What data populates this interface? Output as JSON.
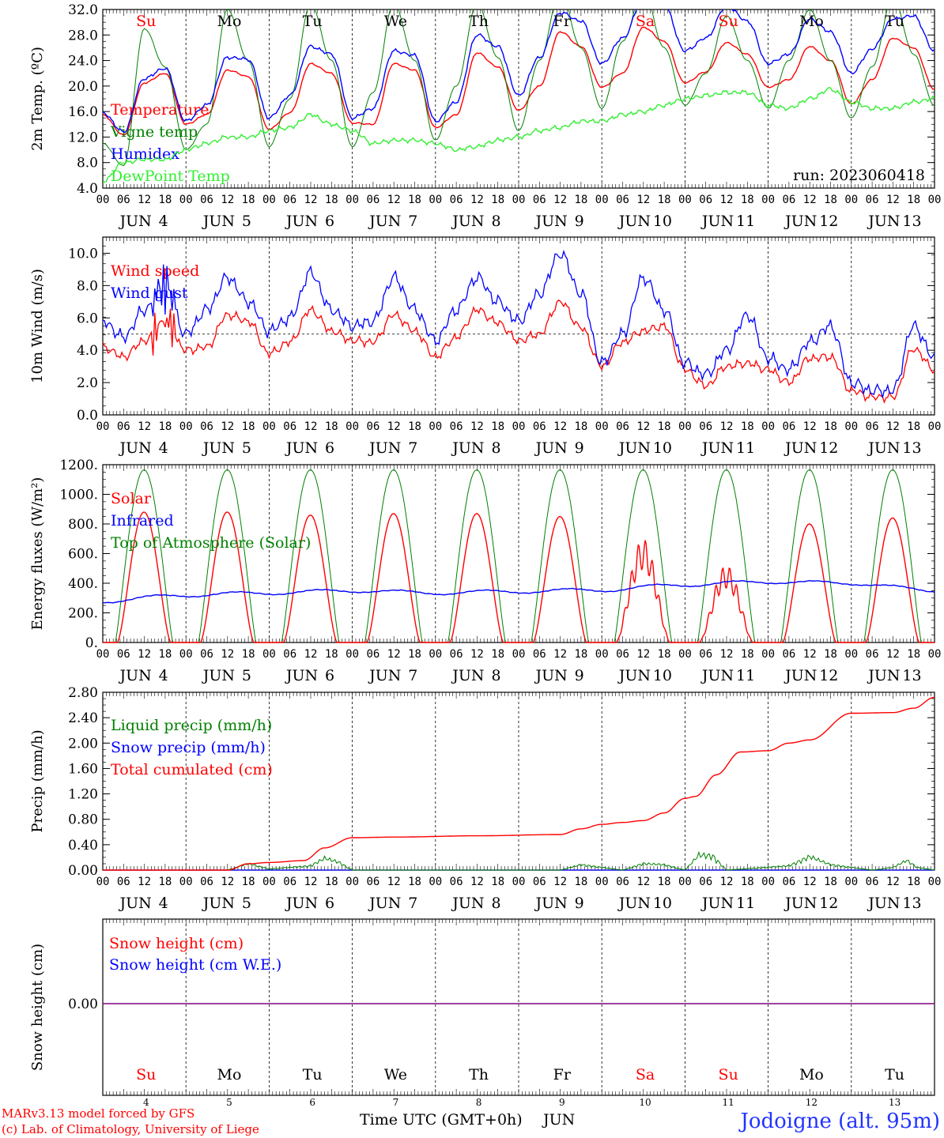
{
  "run_label": "run: 2023060418",
  "footer": {
    "model": "MARv3.13 model forced by GFS",
    "copyright": "(c) Lab. of Climatology, University of Liege",
    "station": "Jodoigne (alt. 95m)",
    "time_axis_label": "Time UTC (GMT+0h)",
    "month": "JUN"
  },
  "colors": {
    "red": "#ff0000",
    "blue": "#0000ff",
    "dark_green": "#008000",
    "light_green": "#33ee33",
    "purple": "#800080",
    "black": "#000000"
  },
  "days": [
    {
      "dow": "Su",
      "date": "4",
      "weekend": true
    },
    {
      "dow": "Mo",
      "date": "5",
      "weekend": false
    },
    {
      "dow": "Tu",
      "date": "6",
      "weekend": false
    },
    {
      "dow": "We",
      "date": "7",
      "weekend": false
    },
    {
      "dow": "Th",
      "date": "8",
      "weekend": false
    },
    {
      "dow": "Fr",
      "date": "9",
      "weekend": false
    },
    {
      "dow": "Sa",
      "date": "10",
      "weekend": true
    },
    {
      "dow": "Su",
      "date": "11",
      "weekend": true
    },
    {
      "dow": "Mo",
      "date": "12",
      "weekend": false
    },
    {
      "dow": "Tu",
      "date": "13",
      "weekend": false
    }
  ],
  "hour_ticks": [
    "00",
    "06",
    "12",
    "18"
  ],
  "hour_end": "00",
  "date_prefix": "JUN",
  "chart_data": [
    {
      "id": "temp",
      "type": "line",
      "ylabel": "2m Temp. (ºC)",
      "ylim": [
        4,
        32
      ],
      "yticks": [
        "4.0",
        "8.0",
        "12.0",
        "16.0",
        "20.0",
        "24.0",
        "28.0",
        "32.0"
      ],
      "x_unit": "hours since JUN 4 00 UTC",
      "x": [
        0,
        6,
        12,
        18,
        24,
        30,
        36,
        42,
        48,
        54,
        60,
        66,
        72,
        78,
        84,
        90,
        96,
        102,
        108,
        114,
        120,
        126,
        132,
        138,
        144,
        150,
        156,
        162,
        168,
        174,
        180,
        186,
        192,
        198,
        204,
        210,
        216,
        222,
        228,
        234,
        240
      ],
      "series": [
        {
          "name": "Temperature",
          "color": "#ff0000",
          "values": [
            15.5,
            12.3,
            20.5,
            22.0,
            14.0,
            15.5,
            22.5,
            21.5,
            13.2,
            15.8,
            23.5,
            22.0,
            14.2,
            14.0,
            23.5,
            22.5,
            13.5,
            15.5,
            25.2,
            23.0,
            16.2,
            20.0,
            28.5,
            26.2,
            19.8,
            22.0,
            29.2,
            27.0,
            20.5,
            22.2,
            26.8,
            25.0,
            19.8,
            21.0,
            26.2,
            24.0,
            17.2,
            21.0,
            27.5,
            26.0,
            19.5
          ]
        },
        {
          "name": "Vigne temp",
          "color": "#008000",
          "values": [
            11.0,
            7.5,
            29.0,
            23.0,
            10.0,
            14.0,
            32.0,
            24.0,
            10.5,
            18.0,
            33.0,
            24.0,
            10.5,
            19.0,
            33.0,
            24.0,
            11.5,
            20.0,
            33.0,
            24.5,
            13.0,
            24.0,
            35.0,
            26.0,
            16.5,
            27.0,
            35.0,
            26.0,
            17.0,
            22.0,
            31.0,
            24.0,
            16.5,
            24.0,
            32.0,
            24.0,
            15.0,
            23.0,
            34.0,
            25.0,
            17.0
          ]
        },
        {
          "name": "Humidex",
          "color": "#0000ff",
          "values": [
            15.8,
            12.8,
            21.2,
            22.8,
            14.5,
            17.0,
            24.5,
            24.2,
            15.0,
            18.5,
            26.2,
            25.0,
            15.0,
            16.5,
            25.5,
            24.8,
            14.5,
            17.5,
            28.0,
            26.2,
            18.5,
            24.5,
            31.5,
            30.2,
            23.5,
            27.5,
            33.5,
            32.5,
            25.5,
            27.5,
            32.5,
            30.2,
            23.5,
            25.0,
            30.5,
            28.5,
            22.0,
            25.8,
            30.5,
            31.0,
            25.5
          ]
        },
        {
          "name": "DewPoint Temp",
          "color": "#33ee33",
          "values": [
            5.0,
            8.0,
            8.5,
            8.5,
            10.0,
            11.0,
            12.0,
            12.0,
            13.0,
            13.5,
            15.5,
            14.0,
            13.0,
            11.0,
            11.5,
            11.5,
            11.0,
            10.0,
            10.5,
            11.5,
            12.0,
            13.0,
            13.5,
            14.5,
            14.5,
            15.5,
            16.0,
            17.0,
            18.0,
            18.5,
            19.0,
            19.0,
            17.0,
            16.5,
            18.0,
            19.5,
            17.5,
            16.5,
            16.5,
            17.5,
            18.0
          ]
        }
      ]
    },
    {
      "id": "wind",
      "type": "line",
      "ylabel": "10m Wind (m/s)",
      "ylim": [
        0,
        11
      ],
      "yticks": [
        "0.0",
        "2.0",
        "4.0",
        "6.0",
        "8.0",
        "10.0"
      ],
      "ref_line": 5,
      "x_unit": "hours since JUN 4 00 UTC",
      "x": [
        0,
        6,
        12,
        18,
        24,
        30,
        36,
        42,
        48,
        54,
        60,
        66,
        72,
        78,
        84,
        90,
        96,
        102,
        108,
        114,
        120,
        126,
        132,
        138,
        144,
        150,
        156,
        162,
        168,
        174,
        180,
        186,
        192,
        198,
        204,
        210,
        216,
        222,
        228,
        234,
        240
      ],
      "series": [
        {
          "name": "Wind speed",
          "color": "#ff0000",
          "values": [
            4.2,
            3.6,
            4.6,
            5.8,
            4.0,
            4.2,
            6.2,
            5.8,
            3.8,
            4.5,
            6.5,
            5.2,
            4.6,
            4.5,
            6.2,
            5.2,
            3.6,
            4.8,
            6.5,
            5.7,
            4.6,
            5.0,
            7.0,
            5.4,
            3.0,
            4.5,
            5.2,
            5.5,
            2.8,
            1.8,
            3.0,
            3.2,
            2.8,
            2.0,
            3.5,
            3.6,
            1.5,
            1.1,
            1.1,
            4.1,
            2.8
          ]
        },
        {
          "name": "Wind gust",
          "color": "#0000ff",
          "values": [
            5.8,
            4.8,
            6.5,
            8.0,
            5.0,
            6.5,
            8.5,
            7.0,
            5.2,
            6.0,
            8.8,
            6.5,
            5.5,
            5.8,
            8.5,
            6.5,
            4.6,
            6.5,
            8.5,
            7.0,
            5.8,
            7.5,
            10.0,
            7.5,
            3.2,
            5.0,
            8.5,
            6.5,
            3.2,
            2.5,
            4.0,
            6.2,
            3.5,
            2.8,
            4.5,
            5.5,
            2.0,
            1.5,
            1.5,
            5.5,
            3.5
          ]
        }
      ]
    },
    {
      "id": "energy",
      "type": "line",
      "ylabel": "Energy fluxes (W/m²)",
      "ylim": [
        0,
        1200
      ],
      "yticks": [
        "0.",
        "200.",
        "400.",
        "600.",
        "800.",
        "1000.",
        "1200."
      ],
      "series": [
        {
          "name": "Solar",
          "color": "#ff0000",
          "daily_peak": [
            880,
            880,
            860,
            870,
            870,
            850,
            700,
            520,
            800,
            840
          ]
        },
        {
          "name": "Infrared",
          "color": "#0000ff",
          "x": [
            0,
            24,
            48,
            72,
            96,
            120,
            144,
            168,
            192,
            216,
            240
          ],
          "values": [
            280,
            320,
            335,
            350,
            335,
            345,
            355,
            390,
            410,
            400,
            350
          ]
        },
        {
          "name": "Top of Atmosphere (Solar)",
          "color": "#008000",
          "daily_peak": [
            1165,
            1165,
            1165,
            1165,
            1165,
            1165,
            1165,
            1165,
            1165,
            1165
          ]
        }
      ]
    },
    {
      "id": "precip",
      "type": "line",
      "ylabel": "Precip (mm/h)",
      "ylim": [
        0,
        2.8
      ],
      "yticks": [
        "0.00",
        "0.40",
        "0.80",
        "1.20",
        "1.60",
        "2.00",
        "2.40",
        "2.80"
      ],
      "series": [
        {
          "name": "Liquid precip (mm/h)",
          "color": "#008000",
          "x": [
            0,
            36,
            42,
            48,
            60,
            64,
            68,
            72,
            132,
            138,
            150,
            156,
            162,
            168,
            172,
            176,
            180,
            198,
            204,
            210,
            222,
            228,
            232,
            235,
            240
          ],
          "values": [
            0,
            0,
            0.12,
            0.02,
            0.08,
            0.22,
            0.15,
            0,
            0,
            0.1,
            0,
            0.12,
            0.1,
            0,
            0.28,
            0.26,
            0,
            0.08,
            0.25,
            0.1,
            0,
            0.05,
            0.18,
            0.05,
            0
          ]
        },
        {
          "name": "Snow precip (mm/h)",
          "color": "#0000ff",
          "x": [
            0,
            240
          ],
          "values": [
            0,
            0
          ]
        },
        {
          "name": "Total cumulated (cm)",
          "color": "#ff0000",
          "x": [
            0,
            36,
            42,
            48,
            58,
            64,
            72,
            84,
            108,
            132,
            138,
            144,
            150,
            156,
            162,
            168,
            171,
            177,
            184,
            192,
            198,
            204,
            216,
            228,
            234,
            240
          ],
          "values": [
            0,
            0,
            0.1,
            0.12,
            0.15,
            0.35,
            0.51,
            0.52,
            0.54,
            0.56,
            0.65,
            0.72,
            0.75,
            0.78,
            0.9,
            1.13,
            1.16,
            1.5,
            1.86,
            1.88,
            2.0,
            2.05,
            2.47,
            2.48,
            2.55,
            2.72
          ]
        }
      ]
    },
    {
      "id": "snow",
      "type": "line",
      "ylabel": "Snow height (cm)",
      "ytick": "0.00",
      "series": [
        {
          "name": "Snow height (cm)",
          "color": "#ff0000",
          "values": [
            0,
            0
          ]
        },
        {
          "name": "Snow height (cm W.E.)",
          "color": "#0000ff",
          "values": [
            0,
            0
          ]
        }
      ]
    }
  ]
}
